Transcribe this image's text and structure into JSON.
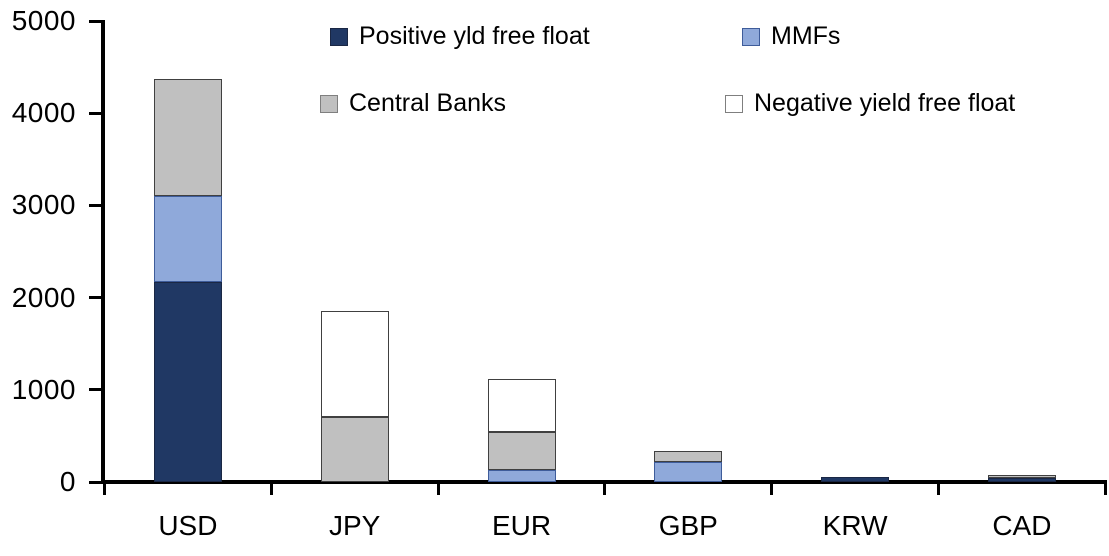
{
  "chart_data": {
    "type": "bar",
    "stacked": true,
    "title": "",
    "xlabel": "",
    "ylabel": "",
    "categories": [
      "USD",
      "JPY",
      "EUR",
      "GBP",
      "KRW",
      "CAD"
    ],
    "series": [
      {
        "name": "Positive yld free float",
        "color": "#203864",
        "border_color": "#1a2744",
        "values": [
          2170,
          0,
          0,
          0,
          50,
          45
        ]
      },
      {
        "name": "MMFs",
        "color": "#8FA9DA",
        "border_color": "#3E5C9A",
        "values": [
          930,
          0,
          125,
          220,
          0,
          0
        ]
      },
      {
        "name": "Central Banks",
        "color": "#C0C0C0",
        "border_color": "#404040",
        "values": [
          1270,
          710,
          420,
          120,
          0,
          30
        ]
      },
      {
        "name": "Negative yield free float",
        "color": "#FFFFFF",
        "border_color": "#404040",
        "values": [
          0,
          1150,
          575,
          0,
          0,
          0
        ]
      }
    ],
    "ylim": [
      0,
      5000
    ],
    "yticks": [
      0,
      1000,
      2000,
      3000,
      4000,
      5000
    ],
    "grid": false,
    "legend_position": "top",
    "legend_rows": 2,
    "axis_color": "#000000",
    "background_color": "#FFFFFF"
  }
}
